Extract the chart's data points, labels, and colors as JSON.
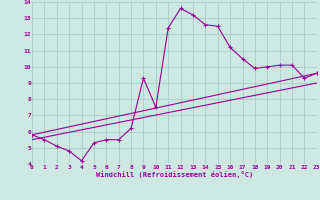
{
  "xlabel": "Windchill (Refroidissement éolien,°C)",
  "xlim": [
    0,
    23
  ],
  "ylim": [
    4,
    14
  ],
  "xtick_labels": [
    "0",
    "1",
    "2",
    "3",
    "4",
    "5",
    "6",
    "7",
    "8",
    "9",
    "10",
    "11",
    "12",
    "13",
    "14",
    "15",
    "16",
    "17",
    "18",
    "19",
    "20",
    "21",
    "22",
    "23"
  ],
  "ytick_labels": [
    "4",
    "5",
    "6",
    "7",
    "8",
    "9",
    "10",
    "11",
    "12",
    "13",
    "14"
  ],
  "bg_color": "#cce8e0",
  "line_color": "#990099",
  "grid_color": "#aacccc",
  "line1_x": [
    0,
    1,
    2,
    3,
    4,
    5,
    6,
    7,
    8,
    9,
    10,
    11,
    12,
    13,
    14,
    15,
    16,
    17,
    18,
    19,
    20,
    21,
    22,
    23
  ],
  "line1_y": [
    5.8,
    5.5,
    5.1,
    4.8,
    4.2,
    5.3,
    5.5,
    5.5,
    6.2,
    9.3,
    7.5,
    12.4,
    13.6,
    13.2,
    12.6,
    12.5,
    11.2,
    10.5,
    9.9,
    10.0,
    10.1,
    10.1,
    9.3,
    9.6
  ],
  "line2_x": [
    0,
    23
  ],
  "line2_y": [
    5.8,
    9.6
  ],
  "line3_x": [
    0,
    23
  ],
  "line3_y": [
    5.5,
    9.0
  ]
}
